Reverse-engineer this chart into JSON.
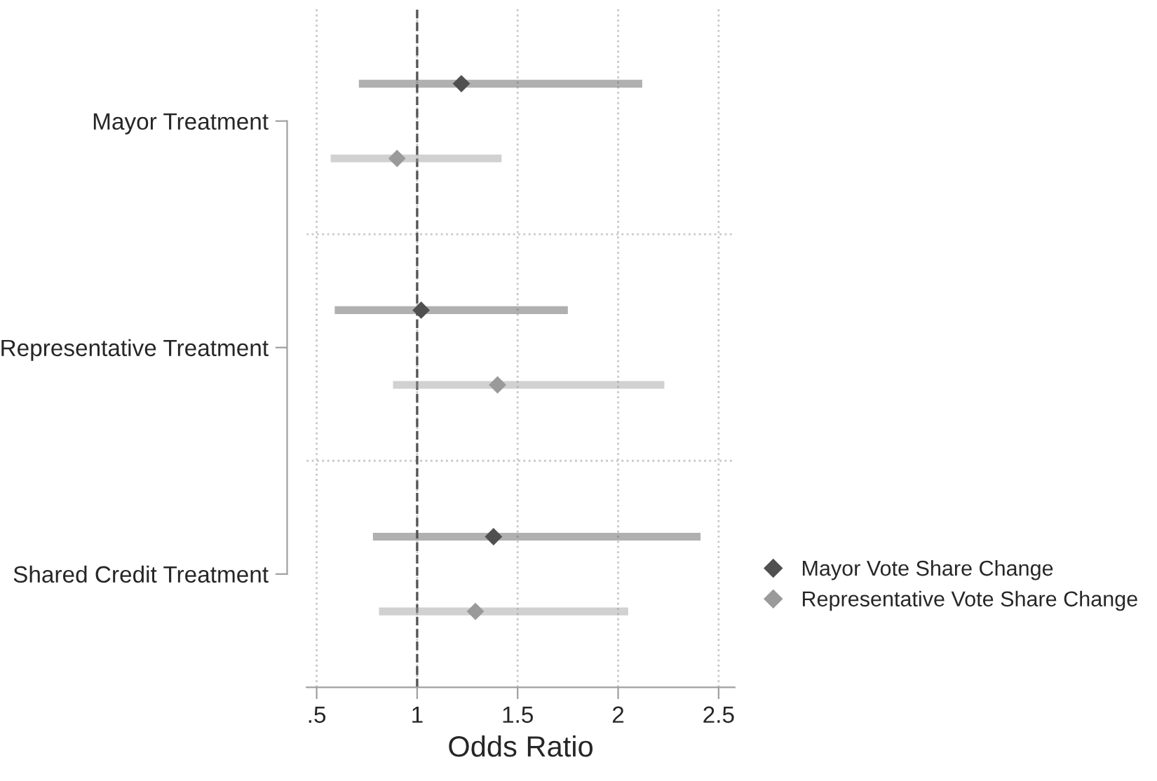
{
  "chart_data": {
    "type": "scatter",
    "orientation": "horizontal",
    "xlabel": "Odds Ratio",
    "categories": [
      "Mayor Treatment",
      "Representative Treatment",
      "Shared Credit Treatment"
    ],
    "series": [
      {
        "name": "Mayor Vote Share Change",
        "color": "#505050",
        "values": [
          1.22,
          1.02,
          1.38
        ],
        "errors": [
          [
            0.71,
            2.12
          ],
          [
            0.59,
            1.75
          ],
          [
            0.78,
            2.41
          ]
        ]
      },
      {
        "name": "Representative Vote Share Change",
        "color": "#9a9a9a",
        "values": [
          0.9,
          1.4,
          1.29
        ],
        "errors": [
          [
            0.57,
            1.42
          ],
          [
            0.88,
            2.23
          ],
          [
            0.81,
            2.05
          ]
        ]
      }
    ],
    "xlim": [
      0.45,
      2.58
    ],
    "xticks": [
      {
        "value": 0.5,
        "label": ".5"
      },
      1,
      1.5,
      2,
      2.5
    ],
    "ref_lines": [
      {
        "axis": "x",
        "value": 1,
        "line_style": "dashed",
        "color": "#555555"
      }
    ],
    "grid": true,
    "legend": "bottom right",
    "marker": "diamond"
  }
}
